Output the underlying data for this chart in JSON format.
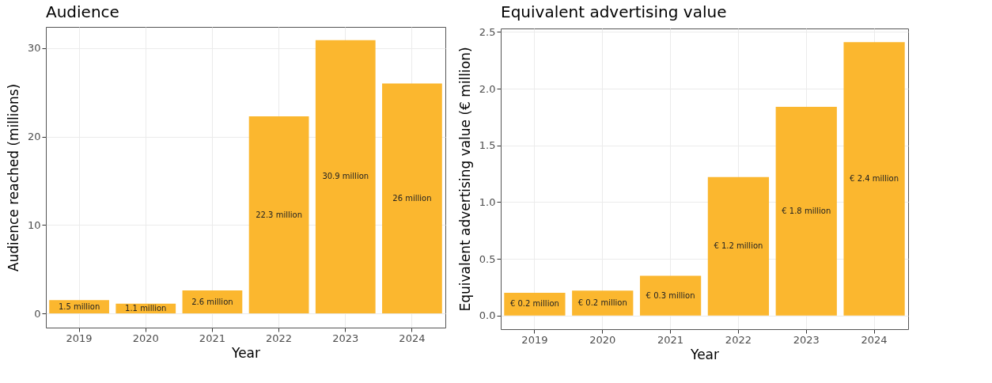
{
  "chart_data": [
    {
      "type": "bar",
      "title": "Audience",
      "xlabel": "Year",
      "ylabel": "Audience reached (millions)",
      "categories": [
        "2019",
        "2020",
        "2021",
        "2022",
        "2023",
        "2024"
      ],
      "values": [
        1.5,
        1.1,
        2.6,
        22.3,
        30.9,
        26
      ],
      "value_labels": [
        "1.5 million",
        "1.1 million",
        "2.6 million",
        "22.3 million",
        "30.9 million",
        "26 million"
      ],
      "color": "#fbb72f",
      "ylim": [
        -1.6,
        32.4
      ],
      "yticks": [
        0,
        10,
        20,
        30
      ],
      "grid": true
    },
    {
      "type": "bar",
      "title": "Equivalent advertising value",
      "xlabel": "Year",
      "ylabel": "Equivalent advertising value (€ million)",
      "categories": [
        "2019",
        "2020",
        "2021",
        "2022",
        "2023",
        "2024"
      ],
      "values": [
        0.2,
        0.22,
        0.35,
        1.22,
        1.84,
        2.41
      ],
      "value_labels": [
        "€ 0.2 million",
        "€ 0.2 million",
        "€ 0.3 million",
        "€ 1.2 million",
        "€ 1.8 million",
        "€ 2.4 million"
      ],
      "color": "#fbb72f",
      "ylim": [
        -0.12,
        2.53
      ],
      "yticks": [
        {
          "value": 0,
          "label": "0.0"
        },
        0.5,
        {
          "value": 1,
          "label": "1.0"
        },
        1.5,
        {
          "value": 2,
          "label": "2.0"
        },
        2.5
      ],
      "grid": true
    }
  ]
}
